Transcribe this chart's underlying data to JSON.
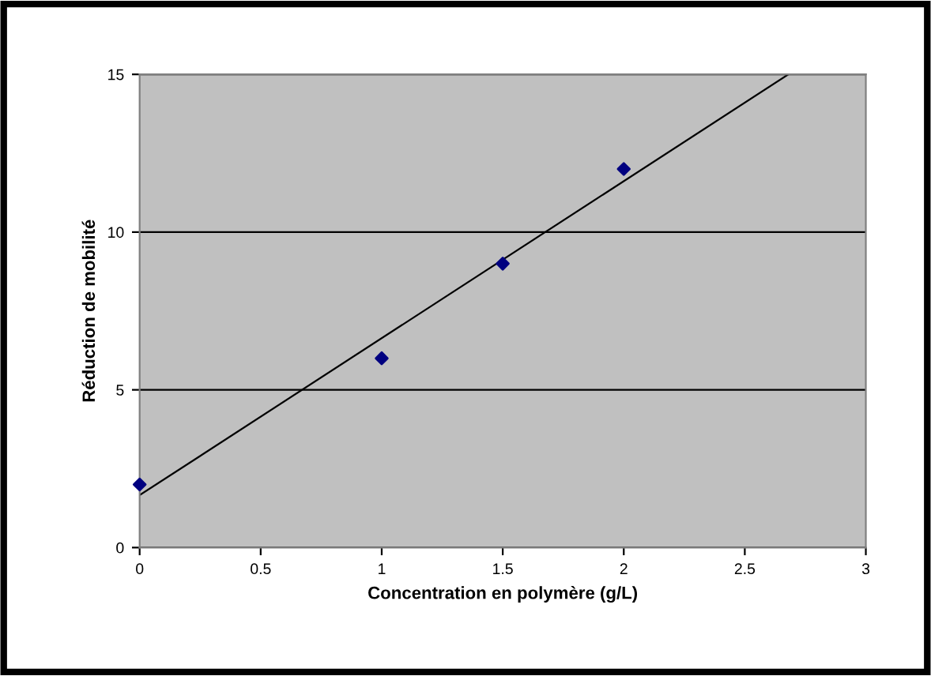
{
  "chart_data": {
    "type": "scatter",
    "xlabel": "Concentration en polymère (g/L)",
    "ylabel": "Réduction de mobilité",
    "series": [
      {
        "x": [
          0,
          1,
          1.5,
          2
        ],
        "values": [
          2,
          6,
          9,
          12
        ],
        "color": "#000080",
        "marker": "diamond"
      },
      {
        "type": "line",
        "x": [
          0,
          2.68
        ],
        "values": [
          1.66,
          15
        ],
        "color": "#000000",
        "marker": "none"
      }
    ],
    "xlim": [
      0,
      3
    ],
    "xticks": [
      0,
      0.5,
      1,
      1.5,
      2,
      2.5,
      3
    ],
    "ylim": [
      0,
      15
    ],
    "yticks": [
      0,
      5,
      10,
      15
    ],
    "grid": "y",
    "legend": false
  }
}
